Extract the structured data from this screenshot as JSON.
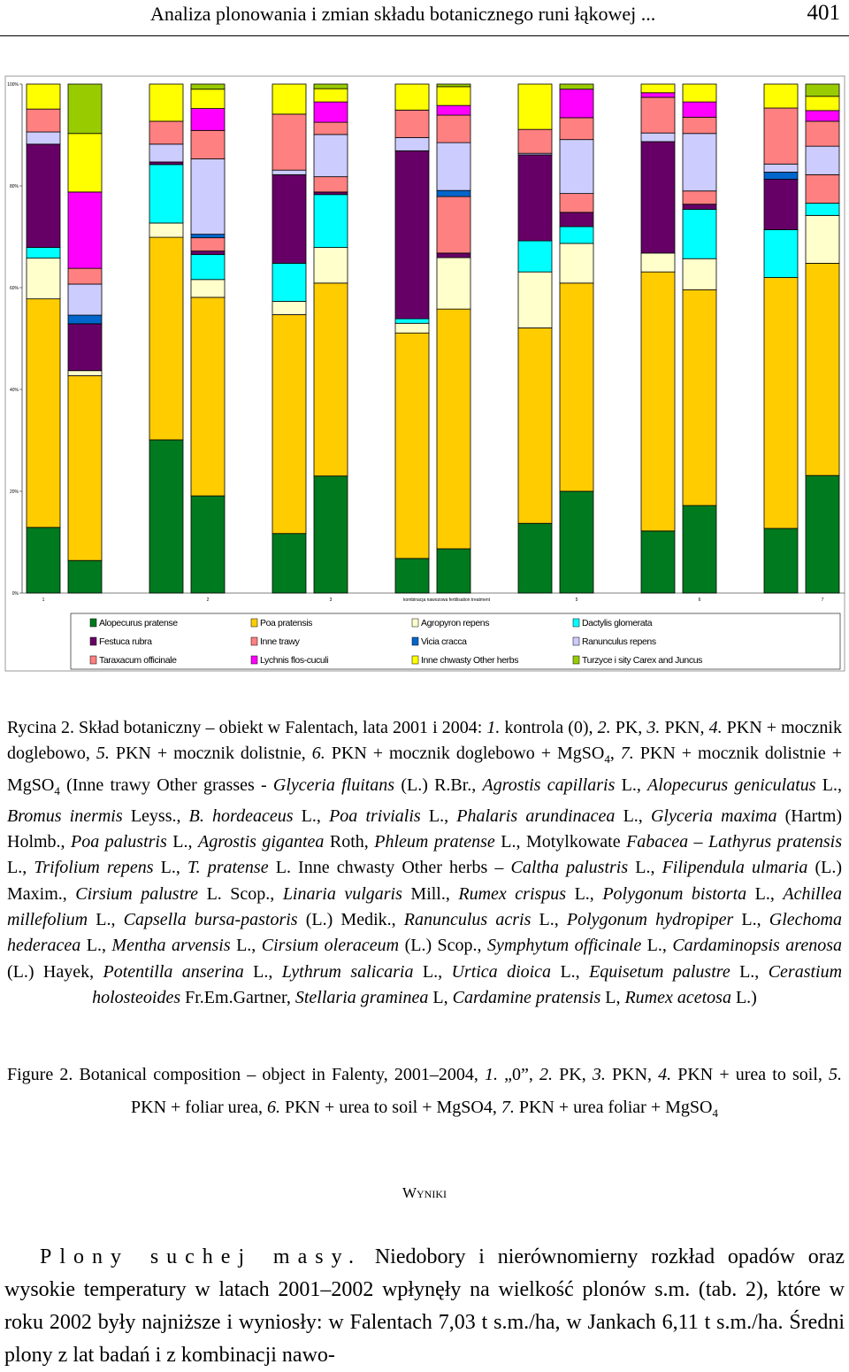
{
  "header": {
    "title": "Analiza plonowania i zmian składu botanicznego runi łąkowej ...",
    "page": "401"
  },
  "chart_data": {
    "type": "stacked_bar_100",
    "categories": [
      "1",
      null,
      null,
      "2",
      null,
      "3",
      null,
      null,
      null,
      "5",
      null,
      "6",
      null,
      "7"
    ],
    "x_label": "kombinacja nawozowa fertilisation treatment",
    "ylim": [
      0,
      100
    ],
    "yticks": [
      {
        "value": 0,
        "label": "0%"
      },
      {
        "value": 20,
        "label": "20%"
      },
      {
        "value": 40,
        "label": "40%"
      },
      {
        "value": 60,
        "label": "60%"
      },
      {
        "value": 80,
        "label": "80%"
      },
      {
        "value": 100,
        "label": "100%"
      }
    ],
    "series": [
      {
        "name": "Alopecurus pratense",
        "color": "#007a1f",
        "values": [
          12.9,
          6.4,
          30.1,
          19.1,
          11.7,
          23,
          6.8,
          8.7,
          13.7,
          20,
          12.2,
          17.2,
          12.7,
          23.1
        ]
      },
      {
        "name": "Poa pratensis",
        "color": "#ffcc00",
        "values": [
          44.9,
          36.3,
          39.8,
          39,
          43,
          37.9,
          44.3,
          47.1,
          38.4,
          40.9,
          50.9,
          42.4,
          49.3,
          41.7
        ]
      },
      {
        "name": "Agropyron repens",
        "color": "#ffffcc",
        "values": [
          8,
          1,
          2.8,
          3.5,
          2.6,
          7,
          1.9,
          10.1,
          11,
          7.8,
          3.7,
          6.1,
          0,
          9.4
        ]
      },
      {
        "name": "Dactylis glomerata",
        "color": "#00ffff",
        "values": [
          2.1,
          0,
          11.5,
          4.9,
          7.5,
          10.4,
          0.9,
          0,
          6.1,
          3.3,
          0,
          9.7,
          9.4,
          2.4
        ]
      },
      {
        "name": "Festuca rubra",
        "color": "#660066",
        "values": [
          20.3,
          9.2,
          0.5,
          0.7,
          17.4,
          0.5,
          33,
          0.9,
          16.9,
          2.8,
          21.9,
          1,
          9.9,
          0
        ]
      },
      {
        "name": "Inne trawy",
        "color": "#ff8080",
        "values": [
          0,
          0,
          0,
          2.6,
          0,
          3,
          0,
          11.1,
          0,
          3.7,
          0,
          2.6,
          0,
          5.6
        ]
      },
      {
        "name": "Vicia cracca",
        "color": "#0066cc",
        "values": [
          0,
          1.7,
          0,
          0.7,
          0,
          0,
          0,
          1.2,
          0,
          0,
          0,
          0,
          1.4,
          0
        ]
      },
      {
        "name": "Ranunculus repens",
        "color": "#ccccff",
        "values": [
          2.4,
          6.1,
          3.5,
          14.8,
          0.9,
          8.3,
          2.6,
          9.4,
          0.3,
          10.6,
          1.7,
          11.3,
          1.6,
          5.6
        ]
      },
      {
        "name": "Taraxacum officinale",
        "color": "#ff8080",
        "values": [
          4.5,
          3.1,
          4.5,
          5.6,
          11,
          2.4,
          5.4,
          5.4,
          4.7,
          4.3,
          7,
          3.2,
          11,
          4.9
        ]
      },
      {
        "name": "Lychnis flos-cuculi",
        "color": "#ff00ff",
        "values": [
          0,
          15,
          0,
          4.3,
          0,
          4,
          0,
          1.9,
          0,
          5.6,
          0.9,
          3,
          0,
          2.1
        ]
      },
      {
        "name": "Inne chwasty Other herbs",
        "color": "#ffff00",
        "values": [
          4.9,
          11.5,
          7.3,
          3.8,
          5.9,
          2.6,
          5.1,
          3.7,
          8.9,
          0,
          1.7,
          3.5,
          4.7,
          2.8
        ]
      },
      {
        "name": "Turzyce i sity Carex and Juncus",
        "color": "#99cc00",
        "values": [
          0,
          9.7,
          0,
          1,
          0,
          0.9,
          0,
          0.5,
          0,
          1,
          0,
          0,
          0,
          2.4
        ]
      }
    ]
  },
  "caption_pl": {
    "runs": [
      "Rycina 2. Skład botaniczny – obiekt w Falentach, lata 2001 i 2004: ",
      {
        "i": "1."
      },
      " kontrola (0), ",
      {
        "i": "2."
      },
      " PK, ",
      {
        "i": "3."
      },
      " PKN, ",
      {
        "i": "4."
      },
      " PKN + mocznik doglebowo, ",
      {
        "i": "5."
      },
      " PKN + mocznik dolistnie, ",
      {
        "i": "6."
      },
      " PKN + mocznik doglebowo + MgSO",
      {
        "sub": "4"
      },
      ", ",
      {
        "i": "7."
      },
      " PKN + mocznik dolistnie + MgSO",
      {
        "sub": "4"
      },
      " (Inne trawy Other grasses - ",
      {
        "i": "Glyceria fluitans"
      },
      " (L.) R.Br., ",
      {
        "i": "Agrostis capillaris"
      },
      " L., ",
      {
        "i": "Alopecurus geniculatus"
      },
      " L., ",
      {
        "i": "Bromus inermis"
      },
      " Leyss., ",
      {
        "i": "B. hordeaceus"
      },
      " L., ",
      {
        "i": "Poa trivialis"
      },
      " L., ",
      {
        "i": "Phalaris arundinacea"
      },
      " L., ",
      {
        "i": "Glyceria maxima"
      },
      " (Hartm) Holmb., ",
      {
        "i": "Poa palustris"
      },
      " L., ",
      {
        "i": "Agrostis gigantea"
      },
      " Roth, ",
      {
        "i": "Phleum pratense"
      },
      " L., Motylkowate ",
      {
        "i": "Fabacea – Lathyrus pratensis"
      },
      " L., ",
      {
        "i": "Trifolium repens"
      },
      " L., ",
      {
        "i": "T. pratense"
      },
      " L. Inne chwasty Other herbs – ",
      {
        "i": "Caltha palustris"
      },
      " L., ",
      {
        "i": "Filipendula ulmaria"
      },
      " (L.) Maxim., ",
      {
        "i": "Cirsium palustre"
      },
      " L. Scop., ",
      {
        "i": "Linaria vulgaris"
      },
      " Mill., ",
      {
        "i": "Rumex crispus"
      },
      " L., ",
      {
        "i": "Polygonum bistorta"
      },
      " L., ",
      {
        "i": "Achillea millefolium"
      },
      " L., ",
      {
        "i": "Capsella bursa-pastoris"
      },
      " (L.) Medik., ",
      {
        "i": "Ranunculus acris"
      },
      " L., ",
      {
        "i": "Polygonum hydropiper"
      },
      " L., ",
      {
        "i": "Glechoma hederacea"
      },
      " L., ",
      {
        "i": "Mentha arvensis"
      },
      " L., ",
      {
        "i": "Cirsium oleraceum"
      },
      " (L.) Scop., ",
      {
        "i": "Symphytum officinale"
      },
      " L., ",
      {
        "i": "Cardaminopsis arenosa"
      },
      " (L.) Hayek, ",
      {
        "i": "Potentilla anserina"
      },
      " L., ",
      {
        "i": "Lythrum salicaria"
      },
      " L., ",
      {
        "i": "Urtica dioica"
      },
      " L., ",
      {
        "i": "Equisetum palustre"
      },
      " L., ",
      {
        "i": "Cerastium holosteoides"
      },
      " Fr.Em.Gartner, ",
      {
        "i": "Stellaria graminea"
      },
      " L, ",
      {
        "i": "Cardamine pratensis"
      },
      " L, ",
      {
        "i": "Rumex acetosa"
      },
      " L.)"
    ]
  },
  "caption_en": {
    "runs": [
      "Figure 2. Botanical composition – object in Falenty, 2001–2004, ",
      {
        "i": "1."
      },
      " „0”, ",
      {
        "i": "2."
      },
      " PK, ",
      {
        "i": "3."
      },
      " PKN, ",
      {
        "i": "4."
      },
      " PKN + urea to soil, ",
      {
        "i": "5."
      },
      " PKN + foliar urea, ",
      {
        "i": "6."
      },
      " PKN + urea to soil + MgSO4, ",
      {
        "i": "7."
      },
      " PKN + urea foliar + MgSO",
      {
        "sub": "4"
      }
    ]
  },
  "section_heading": "Wyniki",
  "paragraph": {
    "lead": "Plony suchej masy.",
    "text": " Niedobory i nierównomierny rozkład opadów oraz wysokie temperatury w latach 2001–2002 wpłynęły na wielkość plonów s.m. (tab. 2), które w roku 2002 były najniższe i wyniosły: w Falentach 7,03 t s.m./ha, w Jankach 6,11 t s.m./ha. Średni plony z lat badań i z kombinacji nawo-"
  }
}
